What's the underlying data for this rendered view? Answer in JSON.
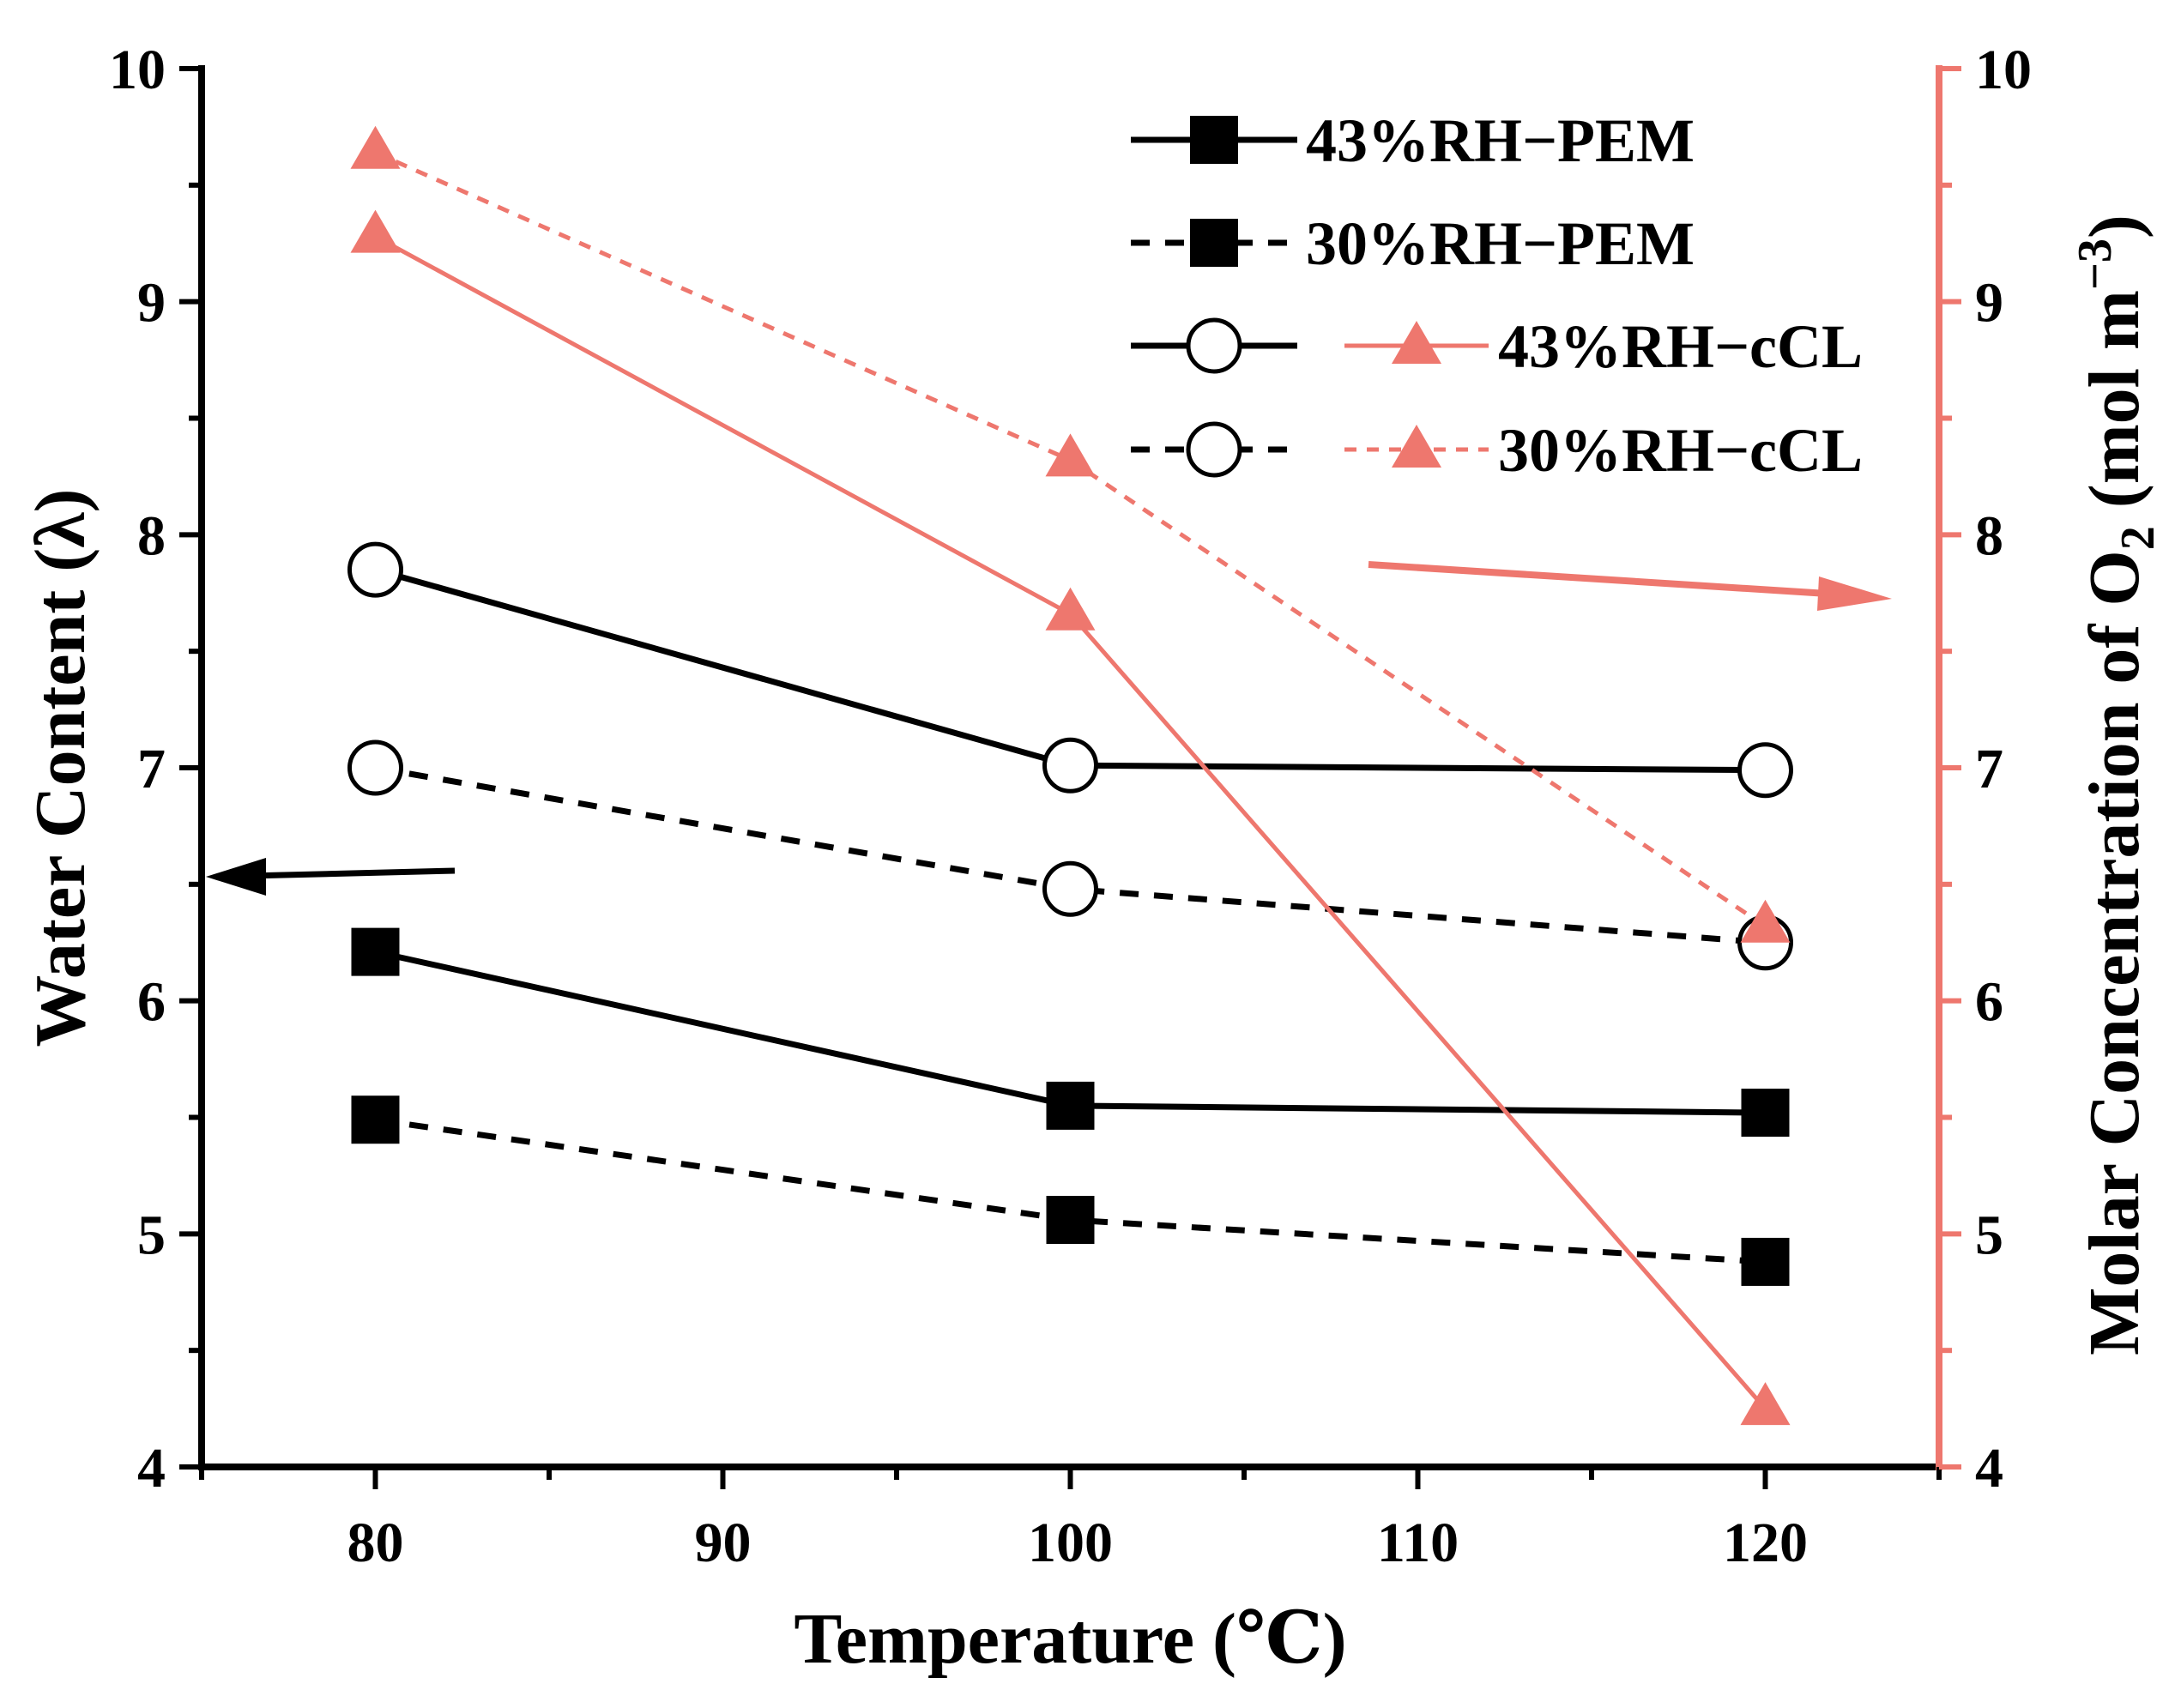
{
  "colors": {
    "black": "#000000",
    "salmon": "#ee776e"
  },
  "chart_data": {
    "type": "line",
    "x": [
      80,
      100,
      120
    ],
    "xlabel": "Temperature (℃)",
    "xlim": [
      75,
      125
    ],
    "xticks": [
      80,
      90,
      100,
      110,
      120
    ],
    "ylabel_left": "Water Content (λ)",
    "ylim_left": [
      4,
      10
    ],
    "yticks_left": [
      4,
      5,
      6,
      7,
      8,
      9,
      10
    ],
    "ylabel_right": {
      "prefix": "Molar Concentration of O",
      "sub": "2",
      "mid": " (mol m",
      "sup": "−3",
      "suffix": ")"
    },
    "ylim_right": [
      4,
      10
    ],
    "yticks_right": [
      4,
      5,
      6,
      7,
      8,
      9,
      10
    ],
    "grid": false,
    "legend_position": "top-right",
    "series": [
      {
        "name": "43%RH−PEM",
        "axis": "left",
        "marker": "square",
        "line": "solid",
        "color": "#000000",
        "values": [
          6.21,
          5.55,
          5.52
        ]
      },
      {
        "name": "30%RH−PEM",
        "axis": "left",
        "marker": "square",
        "line": "dashed",
        "color": "#000000",
        "values": [
          5.49,
          5.06,
          4.88
        ]
      },
      {
        "name": "43%RH−cCL",
        "axis": "left",
        "marker": "circle",
        "line": "solid",
        "color": "#000000",
        "values": [
          7.85,
          7.01,
          6.99
        ]
      },
      {
        "name": "30%RH−cCL",
        "axis": "left",
        "marker": "circle",
        "line": "dashed",
        "color": "#000000",
        "values": [
          7.0,
          6.48,
          6.25
        ]
      },
      {
        "name": "43%RH−cCL",
        "axis": "right",
        "marker": "triangle",
        "line": "solid",
        "color": "#ee776e",
        "values": [
          9.28,
          7.66,
          4.25
        ]
      },
      {
        "name": "30%RH−cCL",
        "axis": "right",
        "marker": "triangle",
        "line": "dashed",
        "color": "#ee776e",
        "values": [
          9.64,
          8.32,
          6.32
        ]
      }
    ],
    "legend": [
      {
        "label": "43%RH−PEM",
        "series": [
          0
        ]
      },
      {
        "label": "30%RH−PEM",
        "series": [
          1
        ]
      },
      {
        "label": "43%RH−cCL",
        "series": [
          2,
          4
        ]
      },
      {
        "label": "30%RH−cCL",
        "series": [
          3,
          5
        ]
      }
    ]
  }
}
